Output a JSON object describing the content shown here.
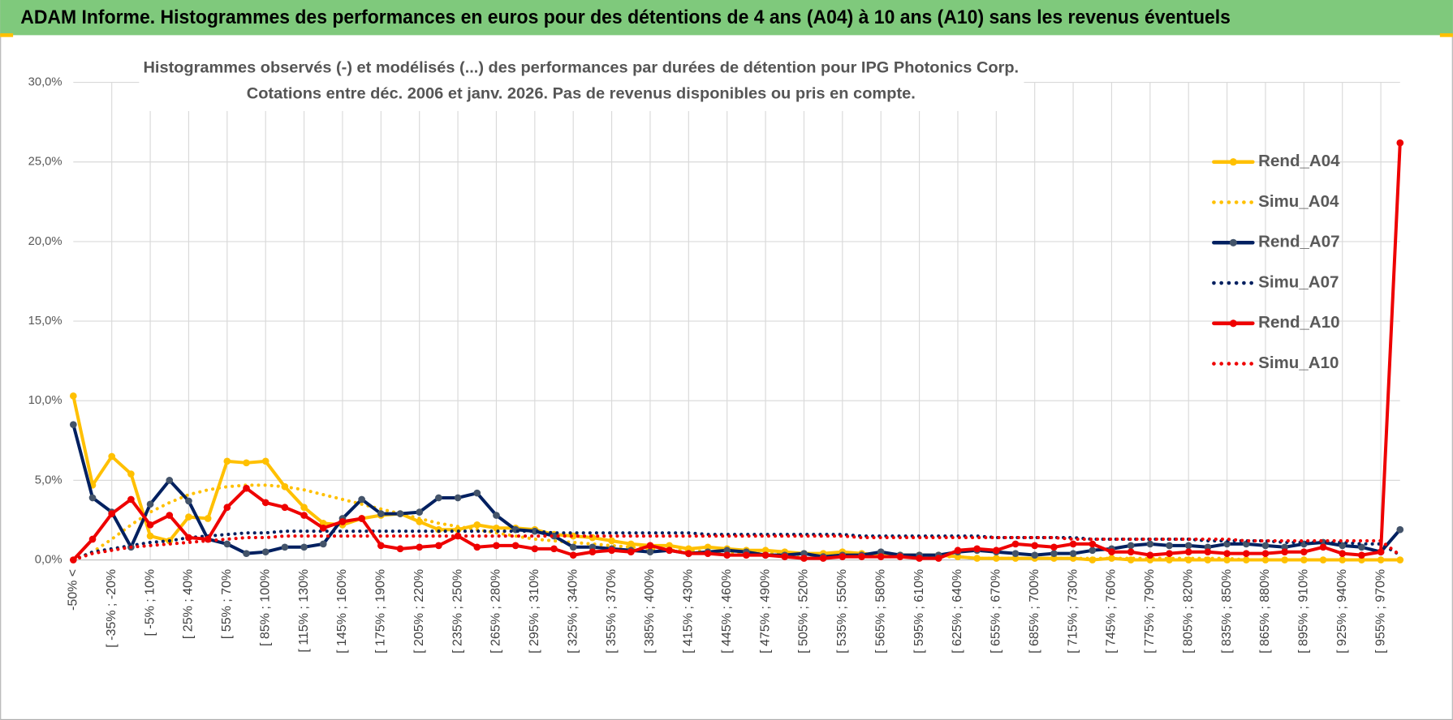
{
  "header": {
    "title": "ADAM Informe. Histogrammes des performances en euros pour des détentions de 4 ans (A04) à 10 ans (A10) sans les revenus éventuels"
  },
  "chart_data": {
    "type": "line",
    "title": [
      "Histogrammes observés (-) et modélisés (...) des performances par durées de détention pour IPG Photonics Corp.",
      "Cotations entre déc. 2006 et janv. 2026. Pas de revenus disponibles ou pris en compte."
    ],
    "categories": [
      "-50% <",
      null,
      "[ -35% ; -20%",
      null,
      "[ -5% ; 10%",
      null,
      "[ 25% ; 40%",
      null,
      "[ 55% ; 70%",
      null,
      "[ 85% ; 100%",
      null,
      "[ 115% ; 130%",
      null,
      "[ 145% ; 160%",
      null,
      "[ 175% ; 190%",
      null,
      "[ 205% ; 220%",
      null,
      "[ 235% ; 250%",
      null,
      "[ 265% ; 280%",
      null,
      "[ 295% ; 310%",
      null,
      "[ 325% ; 340%",
      null,
      "[ 355% ; 370%",
      null,
      "[ 385% ; 400%",
      null,
      "[ 415% ; 430%",
      null,
      "[ 445% ; 460%",
      null,
      "[ 475% ; 490%",
      null,
      "[ 505% ; 520%",
      null,
      "[ 535% ; 550%",
      null,
      "[ 565% ; 580%",
      null,
      "[ 595% ; 610%",
      null,
      "[ 625% ; 640%",
      null,
      "[ 655% ; 670%",
      null,
      "[ 685% ; 700%",
      null,
      "[ 715% ; 730%",
      null,
      "[ 745% ; 760%",
      null,
      "[ 775% ; 790%",
      null,
      "[ 805% ; 820%",
      null,
      "[ 835% ; 850%",
      null,
      "[ 865% ; 880%",
      null,
      "[ 895% ; 910%",
      null,
      "[ 925% ; 940%",
      null,
      "[ 955% ; 970%",
      null
    ],
    "series": [
      {
        "name": "Rend_A04",
        "color": "#ffc000",
        "style": "solid",
        "markers": true,
        "values": [
          10.3,
          4.7,
          6.5,
          5.4,
          1.5,
          1.2,
          2.7,
          2.6,
          6.2,
          6.1,
          6.2,
          4.6,
          3.3,
          2.3,
          2.2,
          2.6,
          2.8,
          2.9,
          2.4,
          1.9,
          1.9,
          2.2,
          2.0,
          2.0,
          1.9,
          1.6,
          1.5,
          1.4,
          1.2,
          1.0,
          0.9,
          0.9,
          0.7,
          0.8,
          0.7,
          0.6,
          0.6,
          0.5,
          0.4,
          0.4,
          0.5,
          0.4,
          0.3,
          0.3,
          0.3,
          0.3,
          0.2,
          0.1,
          0.1,
          0.1,
          0.1,
          0.1,
          0.1,
          0,
          0.1,
          0,
          0,
          0,
          0,
          0,
          0,
          0,
          0,
          0,
          0,
          0,
          0,
          0,
          0,
          0
        ]
      },
      {
        "name": "Simu_A04",
        "color": "#ffc000",
        "style": "dotted",
        "markers": false,
        "values": [
          0,
          0.5,
          1.3,
          2.2,
          3.0,
          3.6,
          4.1,
          4.4,
          4.6,
          4.7,
          4.7,
          4.6,
          4.4,
          4.1,
          3.8,
          3.5,
          3.2,
          2.9,
          2.6,
          2.3,
          2.1,
          1.9,
          1.7,
          1.5,
          1.3,
          1.2,
          1.1,
          1.0,
          0.9,
          0.8,
          0.7,
          0.6,
          0.6,
          0.5,
          0.5,
          0.4,
          0.4,
          0.4,
          0.3,
          0.3,
          0.3,
          0.3,
          0.2,
          0.2,
          0.2,
          0.2,
          0.2,
          0.1,
          0.1,
          0.1,
          0.1,
          0.1,
          0.1,
          0.1,
          0.1,
          0.1,
          0.1,
          0.1,
          0.1,
          0.1,
          0.1,
          0,
          0,
          0,
          0,
          0,
          0,
          0,
          0,
          0
        ]
      },
      {
        "name": "Rend_A07",
        "color": "#002060",
        "style": "solid",
        "markers": true,
        "values": [
          8.5,
          3.9,
          3.0,
          0.8,
          3.5,
          5.0,
          3.7,
          1.3,
          1.0,
          0.4,
          0.5,
          0.8,
          0.8,
          1.0,
          2.6,
          3.8,
          2.9,
          2.9,
          3.0,
          3.9,
          3.9,
          4.2,
          2.8,
          1.9,
          1.8,
          1.5,
          0.8,
          0.8,
          0.7,
          0.6,
          0.5,
          0.6,
          0.4,
          0.5,
          0.6,
          0.5,
          0.3,
          0.3,
          0.4,
          0.2,
          0.3,
          0.3,
          0.5,
          0.3,
          0.3,
          0.3,
          0.5,
          0.6,
          0.5,
          0.4,
          0.3,
          0.4,
          0.4,
          0.6,
          0.7,
          0.9,
          1.0,
          0.9,
          0.9,
          0.8,
          1.0,
          1.0,
          0.9,
          0.8,
          1.0,
          1.1,
          0.9,
          0.8,
          0.5,
          1.9
        ]
      },
      {
        "name": "Simu_A07",
        "color": "#002060",
        "style": "dotted",
        "markers": false,
        "values": [
          0,
          0.5,
          0.7,
          0.9,
          1.1,
          1.2,
          1.4,
          1.5,
          1.6,
          1.7,
          1.7,
          1.8,
          1.8,
          1.8,
          1.8,
          1.8,
          1.8,
          1.8,
          1.8,
          1.8,
          1.8,
          1.8,
          1.8,
          1.8,
          1.8,
          1.7,
          1.7,
          1.7,
          1.7,
          1.7,
          1.7,
          1.7,
          1.7,
          1.6,
          1.6,
          1.6,
          1.6,
          1.6,
          1.6,
          1.6,
          1.6,
          1.5,
          1.5,
          1.5,
          1.5,
          1.5,
          1.5,
          1.5,
          1.4,
          1.4,
          1.4,
          1.4,
          1.4,
          1.3,
          1.3,
          1.3,
          1.3,
          1.3,
          1.3,
          1.2,
          1.2,
          1.2,
          1.2,
          1.1,
          1.1,
          1.1,
          1.1,
          1.0,
          1.0,
          0.3
        ]
      },
      {
        "name": "Rend_A10",
        "color": "#ee0000",
        "style": "solid",
        "markers": true,
        "values": [
          0,
          1.3,
          2.9,
          3.8,
          2.2,
          2.8,
          1.4,
          1.3,
          3.3,
          4.5,
          3.6,
          3.3,
          2.8,
          2.0,
          2.4,
          2.6,
          0.9,
          0.7,
          0.8,
          0.9,
          1.5,
          0.8,
          0.9,
          0.9,
          0.7,
          0.7,
          0.3,
          0.5,
          0.6,
          0.5,
          0.9,
          0.6,
          0.4,
          0.4,
          0.3,
          0.3,
          0.3,
          0.2,
          0.1,
          0.1,
          0.2,
          0.2,
          0.2,
          0.2,
          0.1,
          0.1,
          0.6,
          0.7,
          0.6,
          1.0,
          0.9,
          0.8,
          1.0,
          1.0,
          0.5,
          0.5,
          0.3,
          0.4,
          0.5,
          0.5,
          0.4,
          0.4,
          0.4,
          0.5,
          0.5,
          0.8,
          0.4,
          0.3,
          0.5,
          26.2
        ]
      },
      {
        "name": "Simu_A10",
        "color": "#ee0000",
        "style": "dotted",
        "markers": false,
        "values": [
          0,
          0.4,
          0.6,
          0.8,
          0.9,
          1.0,
          1.1,
          1.2,
          1.3,
          1.4,
          1.4,
          1.5,
          1.5,
          1.5,
          1.5,
          1.5,
          1.5,
          1.5,
          1.5,
          1.5,
          1.5,
          1.5,
          1.5,
          1.5,
          1.5,
          1.5,
          1.5,
          1.5,
          1.5,
          1.5,
          1.5,
          1.5,
          1.5,
          1.5,
          1.5,
          1.5,
          1.5,
          1.5,
          1.5,
          1.5,
          1.5,
          1.4,
          1.4,
          1.4,
          1.4,
          1.4,
          1.4,
          1.4,
          1.4,
          1.4,
          1.4,
          1.4,
          1.3,
          1.3,
          1.3,
          1.3,
          1.3,
          1.3,
          1.3,
          1.3,
          1.3,
          1.2,
          1.2,
          1.2,
          1.2,
          1.2,
          1.2,
          1.2,
          1.2,
          0.3
        ]
      }
    ],
    "ylim": [
      0,
      30
    ],
    "yticks": [
      {
        "value": 0,
        "label": "0,0%"
      },
      {
        "value": 5,
        "label": "5,0%"
      },
      {
        "value": 10,
        "label": "10,0%"
      },
      {
        "value": 15,
        "label": "15,0%"
      },
      {
        "value": 20,
        "label": "20,0%"
      },
      {
        "value": 25,
        "label": "25,0%"
      },
      {
        "value": 30,
        "label": "30,0%"
      }
    ],
    "grid": true,
    "legend": "right"
  }
}
